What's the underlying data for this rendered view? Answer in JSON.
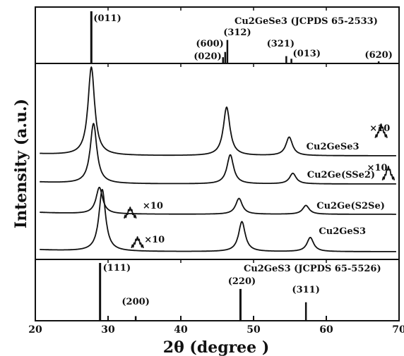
{
  "chart_data": {
    "type": "line",
    "xlabel": "2θ (degree )",
    "ylabel": "Intensity (a.u.)",
    "xlim": [
      20,
      70
    ],
    "x_ticks": [
      "20",
      "30",
      "40",
      "50",
      "60",
      "70"
    ],
    "top_reference": {
      "name": "Cu2GeSe3 (JCPDS 65-2533)",
      "peaks": [
        {
          "x": 27.7,
          "label": "(011)",
          "intensity": 100
        },
        {
          "x": 45.8,
          "label": "(020)",
          "intensity": 12
        },
        {
          "x": 46.1,
          "label": "(600)",
          "intensity": 22
        },
        {
          "x": 46.4,
          "label": "(312)",
          "intensity": 45
        },
        {
          "x": 54.5,
          "label": "(321)",
          "intensity": 14
        },
        {
          "x": 55.2,
          "label": "(013)",
          "intensity": 9
        },
        {
          "x": 67.2,
          "label": "(620)",
          "intensity": 4
        }
      ]
    },
    "bottom_reference": {
      "name": "Cu2GeS3 (JCPDS 65-5526)",
      "peaks": [
        {
          "x": 28.9,
          "label": "(111)",
          "intensity": 100
        },
        {
          "x": 33.8,
          "label": "(200)",
          "intensity": 8
        },
        {
          "x": 48.2,
          "label": "(220)",
          "intensity": 55
        },
        {
          "x": 57.2,
          "label": "(311)",
          "intensity": 32
        }
      ]
    },
    "series": [
      {
        "name": "Cu2GeSe3",
        "offset": 3,
        "peaks": [
          [
            27.7,
            100
          ],
          [
            46.3,
            55
          ],
          [
            54.9,
            21
          ]
        ],
        "inset": {
          "x": 67.5,
          "label": "×10"
        }
      },
      {
        "name": "Cu2Ge(SSe2)",
        "offset": 2,
        "peaks": [
          [
            28.0,
            68
          ],
          [
            46.8,
            33
          ],
          [
            55.4,
            12
          ]
        ],
        "inset": {
          "x": 68.5,
          "label": "×10"
        }
      },
      {
        "name": "Cu2Ge(S2Se)",
        "offset": 1,
        "peaks": [
          [
            28.8,
            30
          ],
          [
            48.0,
            18
          ],
          [
            57.2,
            10
          ]
        ],
        "inset": {
          "x": 33.0,
          "label": "×10"
        }
      },
      {
        "name": "Cu2GeS3",
        "offset": 0,
        "peaks": [
          [
            29.2,
            70
          ],
          [
            48.4,
            34
          ],
          [
            57.8,
            16
          ]
        ],
        "inset": {
          "x": 34.0,
          "label": "×10"
        }
      }
    ]
  }
}
